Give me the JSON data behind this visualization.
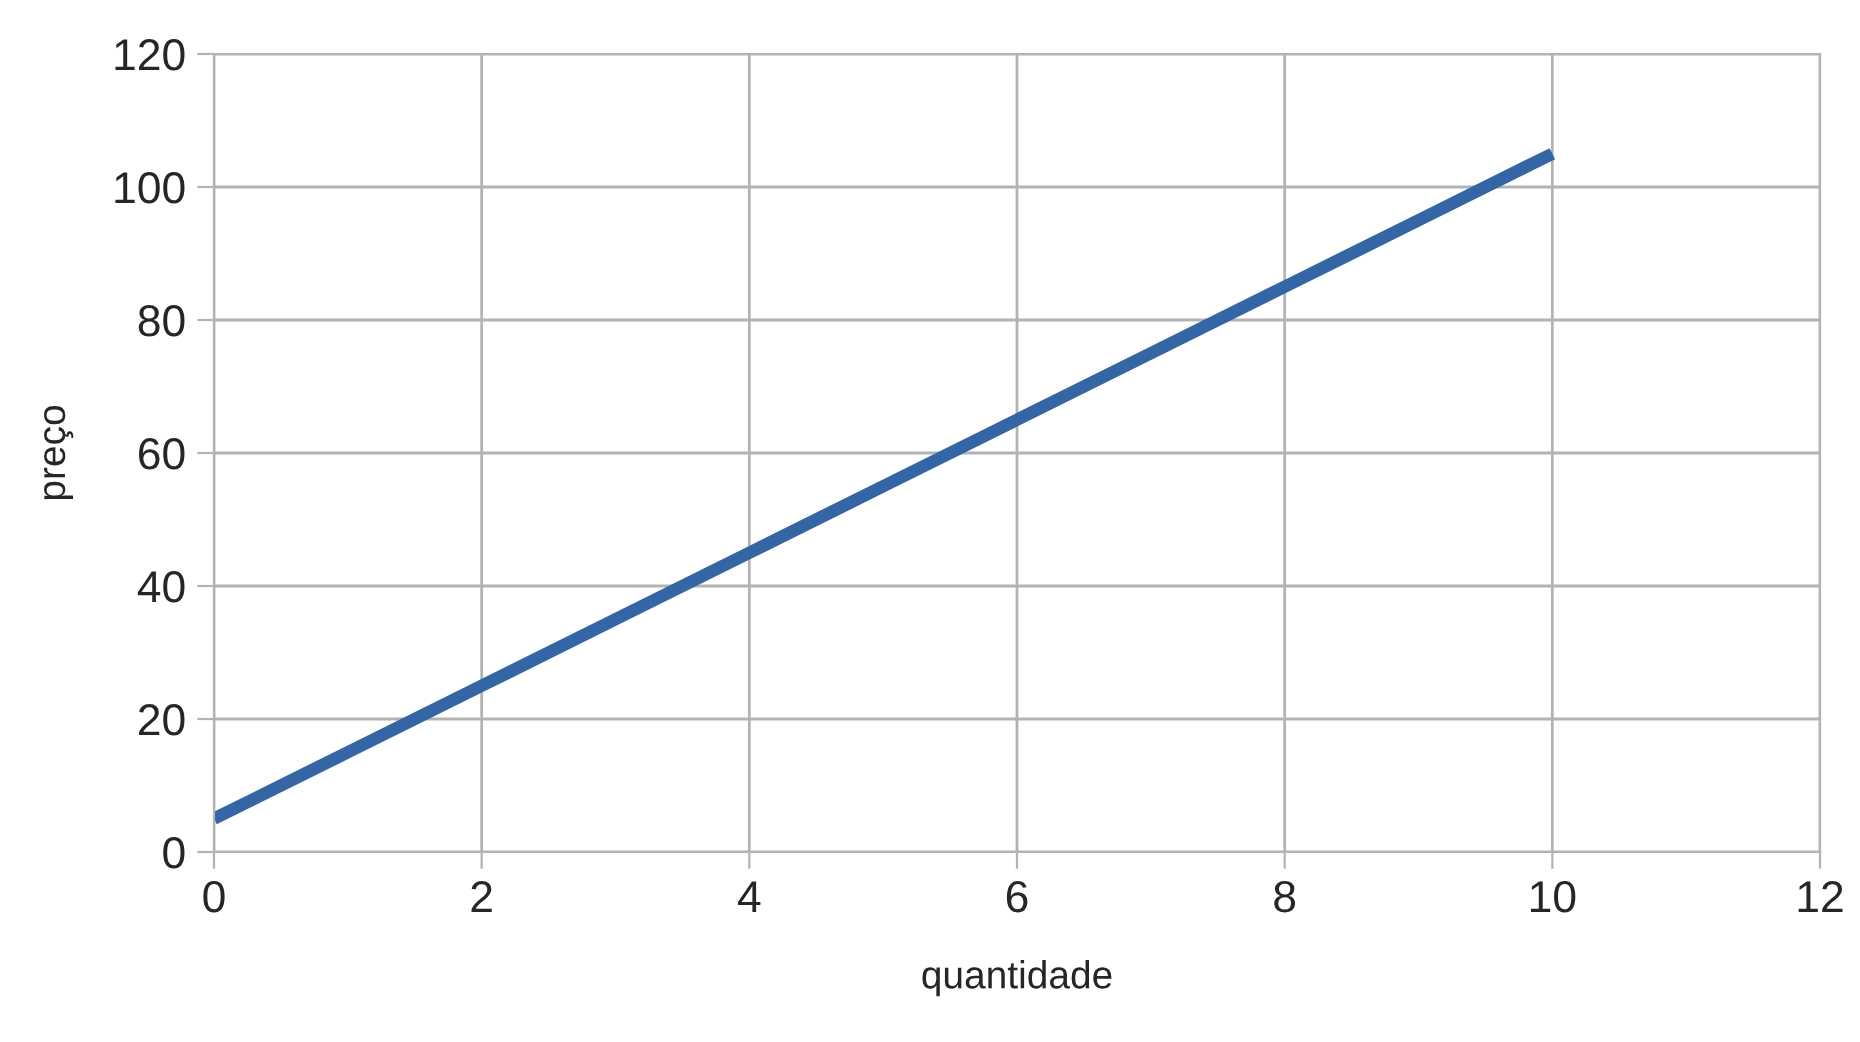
{
  "chart_data": {
    "type": "line",
    "xlabel": "quantidade",
    "ylabel": "preço",
    "x": [
      0,
      1,
      2,
      3,
      4,
      5,
      6,
      7,
      8,
      9,
      10
    ],
    "series": [
      {
        "color": "#3465a4",
        "values": [
          5,
          15,
          25,
          35,
          45,
          55,
          65,
          75,
          85,
          95,
          105
        ]
      }
    ],
    "xlim": [
      0,
      12
    ],
    "xticks": [
      0,
      2,
      4,
      6,
      8,
      10,
      12
    ],
    "ylim": [
      0,
      120
    ],
    "yticks": [
      0,
      20,
      40,
      60,
      80,
      100,
      120
    ],
    "grid": true,
    "marker": "none",
    "line_style": "solid"
  }
}
